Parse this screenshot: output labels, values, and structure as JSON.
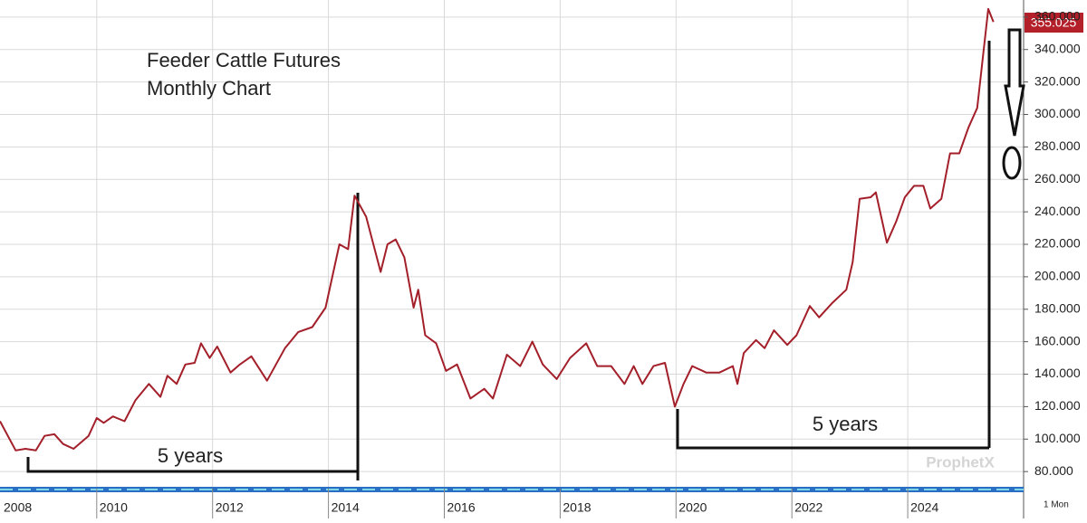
{
  "chart_data": {
    "type": "line",
    "title": "Feeder Cattle Futures",
    "subtitle": "Monthly Chart",
    "annotations": [
      "5 years",
      "5 years"
    ],
    "price_label": "355.025",
    "watermark": "ProphetX",
    "period_label": "1 Mon",
    "color": "#a31f2a",
    "grid": true,
    "xlim": [
      2008.33,
      2026
    ],
    "xticks": [
      2008,
      2010,
      2012,
      2014,
      2016,
      2018,
      2020,
      2022,
      2024
    ],
    "ylim": [
      69.5,
      370.5
    ],
    "yticks": [
      {
        "value": 80,
        "label": "80.000"
      },
      {
        "value": 100,
        "label": "100.000"
      },
      {
        "value": 120,
        "label": "120.000"
      },
      {
        "value": 140,
        "label": "140.000"
      },
      {
        "value": 160,
        "label": "160.000"
      },
      {
        "value": 180,
        "label": "180.000"
      },
      {
        "value": 200,
        "label": "200.000"
      },
      {
        "value": 220,
        "label": "220.000"
      },
      {
        "value": 240,
        "label": "240.000"
      },
      {
        "value": 260,
        "label": "260.000"
      },
      {
        "value": 280,
        "label": "280.000"
      },
      {
        "value": 300,
        "label": "300.000"
      },
      {
        "value": 320,
        "label": "320.000"
      },
      {
        "value": 340,
        "label": "340.000"
      },
      {
        "value": 360,
        "label": "360.000"
      }
    ],
    "x": [
      2008.33,
      2008.6,
      2008.77,
      2008.95,
      2009.1,
      2009.27,
      2009.42,
      2009.6,
      2009.86,
      2010.0,
      2010.12,
      2010.28,
      2010.48,
      2010.67,
      2010.9,
      2011.1,
      2011.22,
      2011.38,
      2011.53,
      2011.69,
      2011.8,
      2011.95,
      2012.08,
      2012.31,
      2012.47,
      2012.67,
      2012.94,
      2013.25,
      2013.48,
      2013.72,
      2013.95,
      2014.19,
      2014.34,
      2014.45,
      2014.65,
      2014.9,
      2015.02,
      2015.16,
      2015.31,
      2015.47,
      2015.55,
      2015.67,
      2015.86,
      2016.03,
      2016.22,
      2016.45,
      2016.69,
      2016.84,
      2017.08,
      2017.31,
      2017.52,
      2017.7,
      2017.94,
      2018.17,
      2018.45,
      2018.64,
      2018.88,
      2019.11,
      2019.27,
      2019.42,
      2019.61,
      2019.81,
      2019.98,
      2020.13,
      2020.28,
      2020.52,
      2020.75,
      2020.98,
      2021.06,
      2021.17,
      2021.38,
      2021.53,
      2021.69,
      2021.92,
      2022.08,
      2022.31,
      2022.47,
      2022.7,
      2022.94,
      2023.05,
      2023.17,
      2023.36,
      2023.45,
      2023.64,
      2023.8,
      2023.95,
      2024.11,
      2024.27,
      2024.39,
      2024.58,
      2024.73,
      2024.89,
      2025.05,
      2025.2,
      2025.39,
      2025.48
    ],
    "values": [
      111,
      93,
      94,
      93,
      102,
      103,
      97,
      94,
      102,
      113,
      110,
      114,
      111,
      124,
      134,
      126,
      139,
      134,
      146,
      147,
      159,
      150,
      157,
      141,
      146,
      151,
      136,
      156,
      166,
      169,
      181,
      220,
      217,
      250,
      237,
      203,
      220,
      223,
      212,
      181,
      192,
      164,
      159,
      142,
      146,
      125,
      131,
      125,
      152,
      145,
      160,
      146,
      137,
      150,
      159,
      145,
      145,
      134,
      145,
      134,
      145,
      147,
      120,
      134,
      145,
      141,
      141,
      145,
      134,
      153,
      161,
      156,
      167,
      158,
      164,
      182,
      175,
      184,
      192,
      209,
      248,
      249,
      252,
      221,
      234,
      249,
      256,
      256,
      242,
      248,
      276,
      276,
      292,
      304,
      365,
      357
    ]
  }
}
